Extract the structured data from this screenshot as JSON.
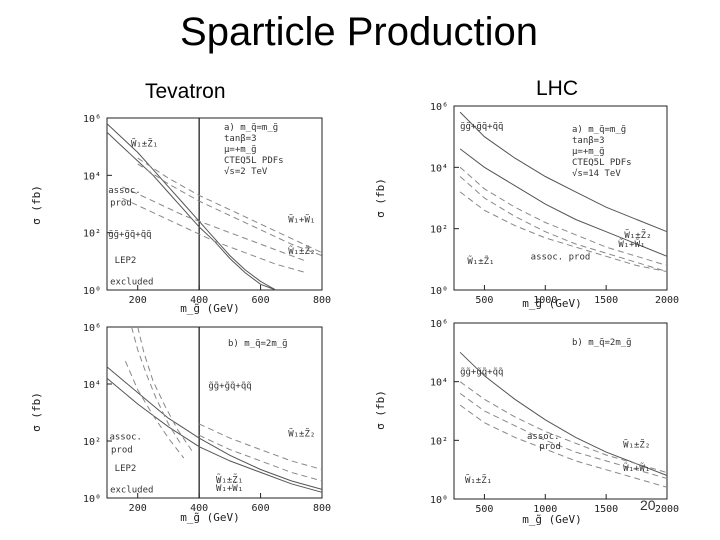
{
  "title": "Sparticle Production",
  "columns": {
    "left": "Tevatron",
    "right": "LHC"
  },
  "page_number": "20",
  "chart_data": [
    {
      "type": "line",
      "panel": "a",
      "collider": "Tevatron",
      "xlabel": "m_g̃ (GeV)",
      "ylabel": "σ (fb)",
      "xlim": [
        100,
        800
      ],
      "ylim_log10": [
        0,
        6
      ],
      "log_y": true,
      "x_ticks": [
        "200",
        "400",
        "600",
        "800"
      ],
      "y_ticks": [
        "10⁰",
        "10²",
        "10⁴",
        "10⁶"
      ],
      "vline_x": 400,
      "params": [
        "a) m_q̃=m_g̃",
        "tanβ=3",
        "μ=+m_g̃",
        "CTEQ5L PDFs",
        "√s=2 TeV"
      ],
      "annotations": [
        {
          "text": "W̃₁±Z̃₁",
          "x": 178,
          "y_log10": 5.0
        },
        {
          "text": "assoc.",
          "x": 104,
          "y_log10": 3.38
        },
        {
          "text": "prod",
          "x": 110,
          "y_log10": 2.95
        },
        {
          "text": "g̃g̃+g̃q̃+q̃q̃",
          "x": 104,
          "y_log10": 1.85
        },
        {
          "text": "W̃₁+W̃₁",
          "x": 690,
          "y_log10": 2.35
        },
        {
          "text": "W̃₁±Z̃₂",
          "x": 690,
          "y_log10": 1.25
        },
        {
          "text": "LEP2",
          "x": 125,
          "y_log10": 0.95
        },
        {
          "text": "excluded",
          "x": 110,
          "y_log10": 0.2
        }
      ],
      "series": [
        {
          "style": "solid",
          "x": [
            100,
            150,
            200,
            250,
            300,
            350,
            400,
            450,
            500,
            550,
            600,
            650
          ],
          "y_log10": [
            5.8,
            5.3,
            4.8,
            4.2,
            3.6,
            3.0,
            2.4,
            1.8,
            1.2,
            0.7,
            0.3,
            0.0
          ]
        },
        {
          "style": "solid",
          "x": [
            100,
            150,
            200,
            250,
            300,
            350,
            400,
            450,
            500,
            550,
            600,
            650
          ],
          "y_log10": [
            5.5,
            5.0,
            4.5,
            4.0,
            3.4,
            2.8,
            2.2,
            1.7,
            1.1,
            0.6,
            0.2,
            0.0
          ]
        },
        {
          "style": "dashed",
          "x": [
            200,
            300,
            400,
            500,
            600,
            700,
            800
          ],
          "y_log10": [
            4.6,
            3.9,
            3.3,
            2.8,
            2.3,
            1.8,
            1.3
          ]
        },
        {
          "style": "dashed",
          "x": [
            200,
            300,
            400,
            500,
            600,
            700,
            800
          ],
          "y_log10": [
            4.4,
            3.7,
            3.1,
            2.6,
            2.1,
            1.6,
            1.2
          ]
        },
        {
          "style": "dashed",
          "x": [
            150,
            250,
            350,
            450,
            550,
            650,
            750
          ],
          "y_log10": [
            3.6,
            3.1,
            2.6,
            2.2,
            1.8,
            1.4,
            1.0
          ]
        },
        {
          "style": "dashed",
          "x": [
            150,
            250,
            350,
            450,
            550,
            650,
            750
          ],
          "y_log10": [
            3.2,
            2.7,
            2.2,
            1.7,
            1.3,
            0.9,
            0.6
          ]
        }
      ]
    },
    {
      "type": "line",
      "panel": "a",
      "collider": "LHC",
      "xlabel": "m_g̃ (GeV)",
      "ylabel": "σ (fb)",
      "xlim": [
        250,
        2000
      ],
      "ylim_log10": [
        0,
        6
      ],
      "log_y": true,
      "x_ticks": [
        "500",
        "1000",
        "1500",
        "2000"
      ],
      "y_ticks": [
        "10⁰",
        "10²",
        "10⁴",
        "10⁶"
      ],
      "params": [
        "a) m_q̃=m_g̃",
        "tanβ=3",
        "μ=+m_g̃",
        "CTEQ5L PDFs",
        "√s=14 TeV"
      ],
      "annotations": [
        {
          "text": "g̃g̃+g̃q̃+q̃q̃",
          "x": 300,
          "y_log10": 5.25
        },
        {
          "text": "W̃₁±Z̃₂",
          "x": 1650,
          "y_log10": 1.7
        },
        {
          "text": "W̃₁+W̃₁",
          "x": 1600,
          "y_log10": 1.4
        },
        {
          "text": "W̃₁±Z̃₁",
          "x": 360,
          "y_log10": 0.85
        },
        {
          "text": "assoc. prod",
          "x": 880,
          "y_log10": 1.0
        }
      ],
      "series": [
        {
          "style": "solid",
          "x": [
            300,
            500,
            750,
            1000,
            1250,
            1500,
            1750,
            2000
          ],
          "y_log10": [
            5.8,
            5.0,
            4.3,
            3.7,
            3.2,
            2.7,
            2.3,
            1.9
          ]
        },
        {
          "style": "solid",
          "x": [
            300,
            500,
            750,
            1000,
            1250,
            1500,
            1750,
            2000
          ],
          "y_log10": [
            4.6,
            4.0,
            3.4,
            2.8,
            2.3,
            1.9,
            1.5,
            1.1
          ]
        },
        {
          "style": "dashed",
          "x": [
            300,
            500,
            750,
            1000,
            1250,
            1500,
            1750,
            2000
          ],
          "y_log10": [
            4.0,
            3.3,
            2.7,
            2.2,
            1.8,
            1.4,
            1.1,
            0.8
          ]
        },
        {
          "style": "dashed",
          "x": [
            300,
            500,
            750,
            1000,
            1250,
            1500,
            1750,
            2000
          ],
          "y_log10": [
            3.7,
            3.0,
            2.4,
            1.9,
            1.5,
            1.2,
            0.9,
            0.6
          ]
        },
        {
          "style": "dashed",
          "x": [
            300,
            500,
            750,
            1000,
            1250,
            1500,
            1750,
            2000
          ],
          "y_log10": [
            3.2,
            2.6,
            2.1,
            1.7,
            1.4,
            1.1,
            0.8,
            0.6
          ]
        }
      ]
    },
    {
      "type": "line",
      "panel": "b",
      "collider": "Tevatron",
      "xlabel": "m_g̃ (GeV)",
      "ylabel": "σ (fb)",
      "xlim": [
        100,
        800
      ],
      "ylim_log10": [
        0,
        6
      ],
      "log_y": true,
      "x_ticks": [
        "200",
        "400",
        "600",
        "800"
      ],
      "y_ticks": [
        "10⁰",
        "10²",
        "10⁴",
        "10⁶"
      ],
      "vline_x": 400,
      "params": [
        "b) m_q̃=2m_g̃"
      ],
      "annotations": [
        {
          "text": "g̃g̃+g̃q̃+q̃q̃",
          "x": 430,
          "y_log10": 3.85
        },
        {
          "text": "assoc.",
          "x": 108,
          "y_log10": 2.05
        },
        {
          "text": "prod",
          "x": 113,
          "y_log10": 1.6
        },
        {
          "text": "W̃₁±Z̃₂",
          "x": 690,
          "y_log10": 2.15
        },
        {
          "text": "LEP2",
          "x": 125,
          "y_log10": 0.95
        },
        {
          "text": "W̃₁±Z̃₁",
          "x": 455,
          "y_log10": 0.55
        },
        {
          "text": "W̃₁+W̃₁",
          "x": 455,
          "y_log10": 0.25
        },
        {
          "text": "excluded",
          "x": 110,
          "y_log10": 0.2
        }
      ],
      "series": [
        {
          "style": "solid",
          "x": [
            100,
            200,
            300,
            400,
            500,
            600,
            700,
            800
          ],
          "y_log10": [
            4.6,
            3.7,
            2.8,
            2.1,
            1.5,
            1.0,
            0.6,
            0.3
          ]
        },
        {
          "style": "solid",
          "x": [
            100,
            200,
            300,
            400,
            500,
            600,
            700,
            800
          ],
          "y_log10": [
            4.2,
            3.3,
            2.5,
            1.8,
            1.3,
            0.9,
            0.5,
            0.2
          ]
        },
        {
          "style": "dashed",
          "x": [
            180,
            200,
            230,
            260,
            300,
            340
          ],
          "y_log10": [
            6.0,
            5.2,
            4.3,
            3.5,
            2.6,
            1.9
          ]
        },
        {
          "style": "dashed",
          "x": [
            200,
            220,
            250,
            290,
            330,
            380
          ],
          "y_log10": [
            6.0,
            5.1,
            4.1,
            3.2,
            2.4,
            1.6
          ]
        },
        {
          "style": "dashed",
          "x": [
            160,
            200,
            250,
            300,
            350
          ],
          "y_log10": [
            4.8,
            3.8,
            2.9,
            2.1,
            1.4
          ]
        },
        {
          "style": "dashed",
          "x": [
            400,
            500,
            600,
            700,
            800
          ],
          "y_log10": [
            2.6,
            2.1,
            1.7,
            1.3,
            1.0
          ]
        },
        {
          "style": "dashed",
          "x": [
            400,
            500,
            600,
            700,
            800
          ],
          "y_log10": [
            2.2,
            1.7,
            1.3,
            0.9,
            0.6
          ]
        }
      ]
    },
    {
      "type": "line",
      "panel": "b",
      "collider": "LHC",
      "xlabel": "m_g̃ (GeV)",
      "ylabel": "σ (fb)",
      "xlim": [
        250,
        2000
      ],
      "ylim_log10": [
        0,
        6
      ],
      "log_y": true,
      "x_ticks": [
        "500",
        "1000",
        "1500",
        "2000"
      ],
      "y_ticks": [
        "10⁰",
        "10²",
        "10⁴",
        "10⁶"
      ],
      "params": [
        "b) m_q̃=2m_g̃"
      ],
      "annotations": [
        {
          "text": "g̃g̃+g̃q̃+q̃q̃",
          "x": 300,
          "y_log10": 4.25
        },
        {
          "text": "assoc.",
          "x": 850,
          "y_log10": 2.05
        },
        {
          "text": "prod",
          "x": 950,
          "y_log10": 1.7
        },
        {
          "text": "W̃₁±Z̃₂",
          "x": 1640,
          "y_log10": 1.75
        },
        {
          "text": "W̃₁+W̃₁",
          "x": 1640,
          "y_log10": 0.95
        },
        {
          "text": "W̃₁±Z̃₁",
          "x": 340,
          "y_log10": 0.55
        }
      ],
      "series": [
        {
          "style": "solid",
          "x": [
            300,
            500,
            750,
            1000,
            1250,
            1500,
            1750,
            2000
          ],
          "y_log10": [
            5.0,
            4.2,
            3.4,
            2.7,
            2.1,
            1.6,
            1.2,
            0.8
          ]
        },
        {
          "style": "dashed",
          "x": [
            300,
            500,
            750,
            1000,
            1250,
            1500,
            1750,
            2000
          ],
          "y_log10": [
            4.0,
            3.4,
            2.8,
            2.3,
            1.9,
            1.5,
            1.2,
            0.9
          ]
        },
        {
          "style": "dashed",
          "x": [
            300,
            500,
            750,
            1000,
            1250,
            1500,
            1750,
            2000
          ],
          "y_log10": [
            3.6,
            3.0,
            2.5,
            2.0,
            1.6,
            1.3,
            1.0,
            0.7
          ]
        },
        {
          "style": "dashed",
          "x": [
            300,
            500,
            750,
            1000,
            1250,
            1500,
            1750,
            2000
          ],
          "y_log10": [
            3.2,
            2.6,
            2.1,
            1.7,
            1.3,
            1.0,
            0.7,
            0.4
          ]
        }
      ]
    }
  ]
}
